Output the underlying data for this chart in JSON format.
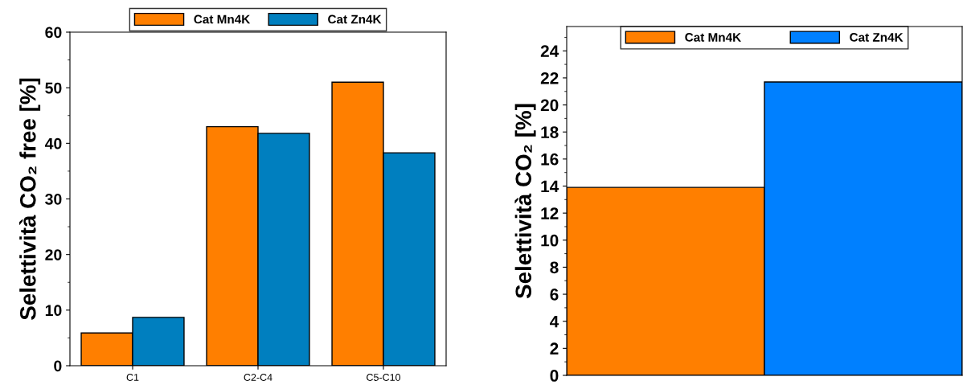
{
  "chart_data": [
    {
      "type": "bar",
      "ylabel": "Selettività CO₂ free [%]",
      "categories": [
        "C1",
        "C2-C4",
        "C5-C10"
      ],
      "series": [
        {
          "name": "Cat Mn4K",
          "color": "#ff7f00",
          "values": [
            5.9,
            43.0,
            51.0
          ]
        },
        {
          "name": "Cat Zn4K",
          "color": "#007fbf",
          "values": [
            8.7,
            41.8,
            38.3
          ]
        }
      ],
      "ylim": [
        0,
        60
      ],
      "yticks": [
        0,
        10,
        20,
        30,
        40,
        50,
        60
      ],
      "legend": "top",
      "grid": false
    },
    {
      "type": "bar",
      "ylabel": "Selettività CO₂ [%]",
      "categories": [
        null
      ],
      "series": [
        {
          "name": "Cat Mn4K",
          "color": "#ff7f00",
          "values": [
            13.9
          ]
        },
        {
          "name": "Cat Zn4K",
          "color": "#0080ff",
          "values": [
            21.7
          ]
        }
      ],
      "ylim": [
        0,
        25.8
      ],
      "yticks": [
        0,
        2,
        4,
        6,
        8,
        10,
        12,
        14,
        16,
        18,
        20,
        22,
        24
      ],
      "legend": "top",
      "grid": false
    }
  ]
}
